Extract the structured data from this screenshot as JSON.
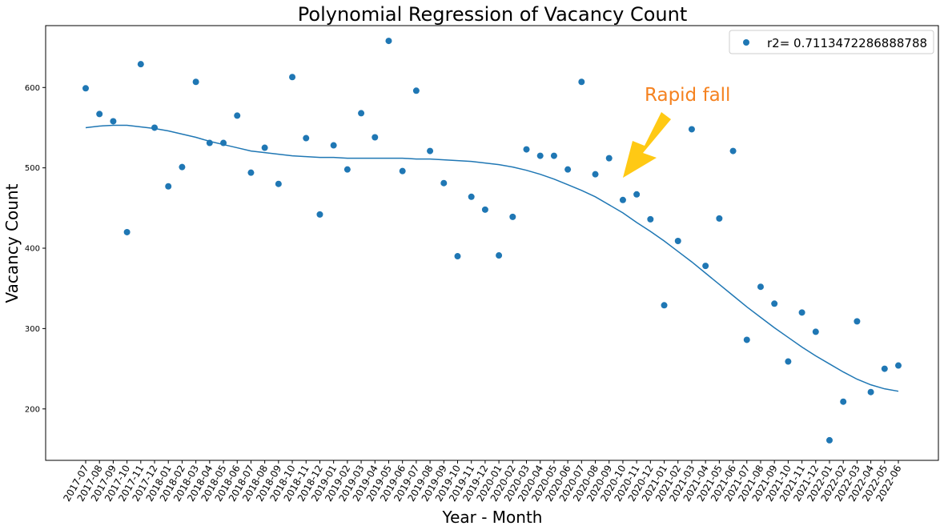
{
  "chart_data": {
    "type": "scatter",
    "title": "Polynomial Regression of Vacancy Count",
    "xlabel": "Year - Month",
    "ylabel": "Vacancy Count",
    "ylim": [
      136,
      677
    ],
    "yticks": [
      200,
      300,
      400,
      500,
      600
    ],
    "grid": false,
    "legend_position": "top-right",
    "categories": [
      "2017-07",
      "2017-08",
      "2017-09",
      "2017-10",
      "2017-11",
      "2017-12",
      "2018-01",
      "2018-02",
      "2018-03",
      "2018-04",
      "2018-05",
      "2018-06",
      "2018-07",
      "2018-08",
      "2018-09",
      "2018-10",
      "2018-11",
      "2018-12",
      "2019-01",
      "2019-02",
      "2019-03",
      "2019-04",
      "2019-05",
      "2019-06",
      "2019-07",
      "2019-08",
      "2019-09",
      "2019-10",
      "2019-11",
      "2019-12",
      "2020-01",
      "2020-02",
      "2020-03",
      "2020-04",
      "2020-05",
      "2020-06",
      "2020-07",
      "2020-08",
      "2020-09",
      "2020-10",
      "2020-11",
      "2020-12",
      "2021-01",
      "2021-02",
      "2021-03",
      "2021-04",
      "2021-05",
      "2021-06",
      "2021-07",
      "2021-08",
      "2021-09",
      "2021-10",
      "2021-11",
      "2021-12",
      "2022-01",
      "2022-02",
      "2022-03",
      "2022-04",
      "2022-05",
      "2022-06"
    ],
    "series": [
      {
        "name": "r2= 0.7113472286888788",
        "kind": "scatter",
        "color": "#1f77b4",
        "values": [
          599,
          567,
          558,
          420,
          629,
          550,
          477,
          501,
          607,
          531,
          531,
          565,
          494,
          525,
          480,
          613,
          537,
          442,
          528,
          498,
          568,
          538,
          658,
          496,
          596,
          521,
          481,
          390,
          464,
          448,
          391,
          439,
          523,
          515,
          515,
          498,
          607,
          492,
          512,
          460,
          467,
          436,
          329,
          409,
          548,
          378,
          437,
          521,
          286,
          352,
          331,
          259,
          320,
          296,
          161,
          209,
          309,
          221,
          250,
          254
        ]
      },
      {
        "name": "",
        "kind": "line",
        "color": "#1f77b4",
        "values": [
          550,
          552,
          553,
          553,
          551,
          549,
          546,
          542,
          538,
          533,
          529,
          525,
          521,
          519,
          517,
          515,
          514,
          513,
          513,
          512,
          512,
          512,
          512,
          512,
          511,
          511,
          510,
          509,
          508,
          506,
          504,
          501,
          497,
          492,
          486,
          479,
          472,
          464,
          454,
          444,
          432,
          421,
          409,
          396,
          383,
          369,
          355,
          341,
          327,
          314,
          301,
          289,
          277,
          266,
          256,
          246,
          237,
          230,
          225,
          222
        ]
      }
    ],
    "annotations": [
      {
        "text": "Rapid fall",
        "color": "#f58220",
        "arrow_color": "#ffc914"
      }
    ]
  }
}
